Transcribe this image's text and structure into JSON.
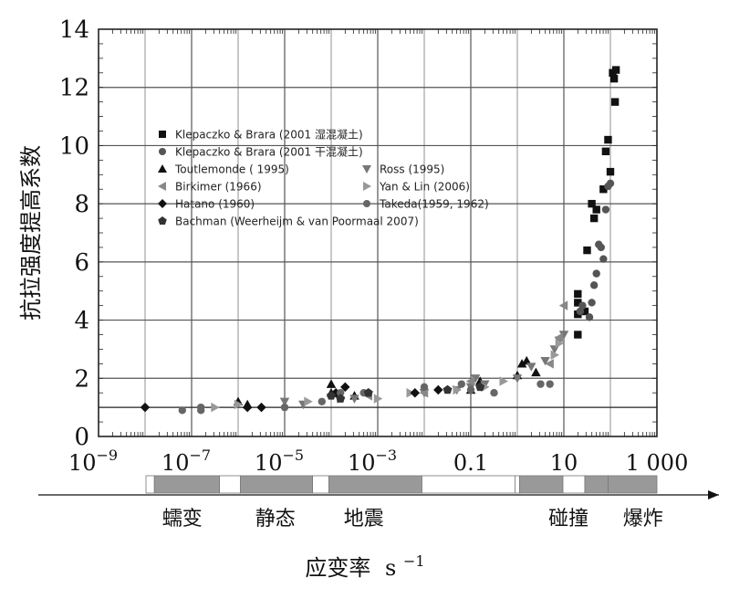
{
  "chart_data": {
    "type": "scatter",
    "ylabel": "抗拉强度提高系数",
    "xlabel_main": "应变率",
    "xlabel_unit": "s",
    "xlabel_exp": "−1",
    "xscale": "log",
    "xlim_exp": [
      -9,
      3
    ],
    "ylim": [
      0,
      14
    ],
    "yticks": [
      "0",
      "2",
      "4",
      "6",
      "8",
      "10",
      "12",
      "14"
    ],
    "xticks": [
      {
        "exp": -9,
        "base": "10",
        "sup": "−9"
      },
      {
        "exp": -7,
        "base": "10",
        "sup": "−7"
      },
      {
        "exp": -5,
        "base": "10",
        "sup": "−5"
      },
      {
        "exp": -3,
        "base": "10",
        "sup": "−3"
      },
      {
        "exp": -1,
        "base": "0.1",
        "sup": ""
      },
      {
        "exp": 1,
        "base": "10",
        "sup": ""
      },
      {
        "exp": 3,
        "base": "1 000",
        "sup": ""
      }
    ],
    "grid": true,
    "legend_position": "upper-left",
    "series": [
      {
        "name": "Klepaczko & Brara (2001 湿混凝土)",
        "marker": "square",
        "color": "#111111",
        "points": [
          [
            1.3,
            3.5
          ],
          [
            1.3,
            4.2
          ],
          [
            1.3,
            4.6
          ],
          [
            1.3,
            4.9
          ],
          [
            1.45,
            4.3
          ],
          [
            1.5,
            6.4
          ],
          [
            1.6,
            8.0
          ],
          [
            1.65,
            7.5
          ],
          [
            1.7,
            7.8
          ],
          [
            1.85,
            8.5
          ],
          [
            1.9,
            9.8
          ],
          [
            1.95,
            10.2
          ],
          [
            2.0,
            9.1
          ],
          [
            2.05,
            12.5
          ],
          [
            2.08,
            12.3
          ],
          [
            2.1,
            11.5
          ],
          [
            2.12,
            12.6
          ]
        ]
      },
      {
        "name": "Klepaczko & Brara (2001 干混凝土)",
        "marker": "circle",
        "color": "#555555",
        "points": [
          [
            1.35,
            4.3
          ],
          [
            1.4,
            4.5
          ],
          [
            1.55,
            4.1
          ],
          [
            1.6,
            4.6
          ],
          [
            1.65,
            5.2
          ],
          [
            1.7,
            5.6
          ],
          [
            1.75,
            6.6
          ],
          [
            1.8,
            6.5
          ],
          [
            1.85,
            6.1
          ],
          [
            1.9,
            7.8
          ],
          [
            1.95,
            8.6
          ],
          [
            2.0,
            8.7
          ]
        ]
      },
      {
        "name": "Toutlemonde ( 1995)",
        "marker": "triangle-up",
        "color": "#111111",
        "points": [
          [
            -6.0,
            1.2
          ],
          [
            -5.8,
            1.1
          ],
          [
            -4.0,
            1.8
          ],
          [
            -4.0,
            1.5
          ],
          [
            -3.5,
            1.4
          ],
          [
            -1.0,
            1.6
          ],
          [
            -0.8,
            1.9
          ],
          [
            0.0,
            2.1
          ],
          [
            0.1,
            2.5
          ],
          [
            0.2,
            2.6
          ],
          [
            0.4,
            2.2
          ]
        ]
      },
      {
        "name": "Ross (1995)",
        "marker": "triangle-down",
        "color": "#777777",
        "points": [
          [
            -5.0,
            1.2
          ],
          [
            -4.6,
            1.1
          ],
          [
            -3.5,
            1.3
          ],
          [
            -2.0,
            1.5
          ],
          [
            -1.3,
            1.6
          ],
          [
            -1.0,
            1.7
          ],
          [
            -0.9,
            2.0
          ],
          [
            -0.7,
            1.8
          ],
          [
            0.0,
            2.0
          ],
          [
            0.3,
            2.4
          ],
          [
            0.6,
            2.6
          ],
          [
            0.8,
            3.0
          ],
          [
            0.9,
            3.3
          ],
          [
            1.0,
            3.5
          ]
        ]
      },
      {
        "name": "Birkimer (1966)",
        "marker": "triangle-left",
        "color": "#888888",
        "points": [
          [
            -3.2,
            1.4
          ],
          [
            -2.0,
            1.5
          ],
          [
            -1.0,
            1.9
          ],
          [
            0.7,
            2.5
          ],
          [
            0.9,
            3.4
          ],
          [
            1.0,
            4.5
          ]
        ]
      },
      {
        "name": "Yan & Lin (2006)",
        "marker": "triangle-right",
        "color": "#999999",
        "points": [
          [
            -6.5,
            1.0
          ],
          [
            -6.0,
            1.1
          ],
          [
            -4.5,
            1.2
          ],
          [
            -3.8,
            1.3
          ],
          [
            -3.0,
            1.3
          ],
          [
            -2.3,
            1.5
          ],
          [
            -1.3,
            1.6
          ],
          [
            -0.7,
            1.7
          ],
          [
            -0.3,
            1.9
          ],
          [
            0.8,
            2.8
          ],
          [
            0.9,
            3.2
          ]
        ]
      },
      {
        "name": "Hatano (1960)",
        "marker": "diamond",
        "color": "#111111",
        "points": [
          [
            -8.0,
            1.0
          ],
          [
            -5.8,
            1.0
          ],
          [
            -5.5,
            1.0
          ],
          [
            -3.9,
            1.5
          ],
          [
            -3.7,
            1.7
          ],
          [
            -2.2,
            1.5
          ],
          [
            -1.7,
            1.6
          ]
        ]
      },
      {
        "name": "Takeda(1959, 1962)",
        "marker": "circle",
        "color": "#666666",
        "points": [
          [
            -7.2,
            0.9
          ],
          [
            -6.8,
            0.9
          ],
          [
            -6.8,
            1.0
          ],
          [
            -5.0,
            1.0
          ],
          [
            -4.2,
            1.2
          ],
          [
            -3.8,
            1.5
          ],
          [
            -3.3,
            1.5
          ],
          [
            -2.0,
            1.7
          ],
          [
            -1.2,
            1.8
          ],
          [
            -1.0,
            1.6
          ],
          [
            -0.5,
            1.5
          ],
          [
            0.5,
            1.8
          ],
          [
            0.7,
            1.8
          ]
        ]
      },
      {
        "name": "Bachman (Weerheijm & van Poormaal 2007)",
        "marker": "pentagon",
        "color": "#333333",
        "points": [
          [
            -4.0,
            1.4
          ],
          [
            -3.8,
            1.3
          ],
          [
            -3.2,
            1.5
          ],
          [
            -1.5,
            1.6
          ],
          [
            -0.8,
            1.7
          ]
        ]
      }
    ],
    "regime_bar": {
      "segments": [
        {
          "from": -9,
          "to": -7.8,
          "fill": "#ffffff"
        },
        {
          "from": -7.8,
          "to": -6.4,
          "fill": "#999999"
        },
        {
          "from": -6.4,
          "to": -5.95,
          "fill": "#ffffff"
        },
        {
          "from": -5.95,
          "to": -4.4,
          "fill": "#999999"
        },
        {
          "from": -4.4,
          "to": -4.05,
          "fill": "#ffffff"
        },
        {
          "from": -4.05,
          "to": -2.05,
          "fill": "#999999"
        },
        {
          "from": -2.05,
          "to": -0.05,
          "fill": "#ffffff"
        },
        {
          "from": -0.05,
          "to": 0.05,
          "fill": "#ffffff"
        },
        {
          "from": 0.05,
          "to": 0.98,
          "fill": "#999999"
        },
        {
          "from": 0.98,
          "to": 1.45,
          "fill": "#ffffff"
        },
        {
          "from": 1.45,
          "to": 1.95,
          "fill": "#999999"
        },
        {
          "from": 1.95,
          "to": 3,
          "fill": "#999999"
        }
      ],
      "labels": [
        {
          "text": "蠕变",
          "at": -7.2
        },
        {
          "text": "静态",
          "at": -5.2
        },
        {
          "text": "地震",
          "at": -3.3
        },
        {
          "text": "碰撞",
          "at": 1.1
        },
        {
          "text": "爆炸",
          "at": 2.7
        }
      ]
    }
  }
}
